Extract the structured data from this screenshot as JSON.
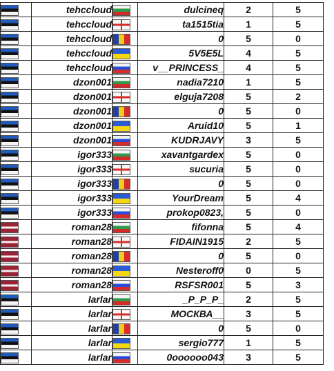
{
  "rows": [
    {
      "player1": "tehccloud",
      "flag1": "ee",
      "flag2": "bg",
      "player2": "dulcineq",
      "score1": "2",
      "score2": "5"
    },
    {
      "player1": "tehccloud",
      "flag1": "ee",
      "flag2": "ge",
      "player2": "ta1515tia",
      "score1": "1",
      "score2": "5"
    },
    {
      "player1": "tehccloud",
      "flag1": "ee",
      "flag2": "md",
      "player2": "0",
      "score1": "5",
      "score2": "0"
    },
    {
      "player1": "tehccloud",
      "flag1": "ee",
      "flag2": "ua",
      "player2": "5V5E5L",
      "score1": "4",
      "score2": "5"
    },
    {
      "player1": "tehccloud",
      "flag1": "ee",
      "flag2": "ru",
      "player2": "v__PRINCESS_",
      "score1": "4",
      "score2": "5"
    },
    {
      "player1": "dzon001",
      "flag1": "ee",
      "flag2": "bg",
      "player2": "nadia7210",
      "score1": "1",
      "score2": "5"
    },
    {
      "player1": "dzon001",
      "flag1": "ee",
      "flag2": "ge",
      "player2": "elguja7208",
      "score1": "5",
      "score2": "2"
    },
    {
      "player1": "dzon001",
      "flag1": "ee",
      "flag2": "md",
      "player2": "0",
      "score1": "5",
      "score2": "0"
    },
    {
      "player1": "dzon001",
      "flag1": "ee",
      "flag2": "ua",
      "player2": "Aruid10",
      "score1": "5",
      "score2": "1"
    },
    {
      "player1": "dzon001",
      "flag1": "ee",
      "flag2": "ru",
      "player2": "KUDRJAVY",
      "score1": "3",
      "score2": "5"
    },
    {
      "player1": "igor333",
      "flag1": "ee",
      "flag2": "bg",
      "player2": "xavantgardex",
      "score1": "5",
      "score2": "0"
    },
    {
      "player1": "igor333",
      "flag1": "ee",
      "flag2": "ge",
      "player2": "sucuria",
      "score1": "5",
      "score2": "0"
    },
    {
      "player1": "igor333",
      "flag1": "ee",
      "flag2": "md",
      "player2": "0",
      "score1": "5",
      "score2": "0"
    },
    {
      "player1": "igor333",
      "flag1": "ee",
      "flag2": "ua",
      "player2": "YourDream",
      "score1": "5",
      "score2": "4"
    },
    {
      "player1": "igor333",
      "flag1": "ee",
      "flag2": "ru",
      "player2": "prokop0823,",
      "score1": "5",
      "score2": "0"
    },
    {
      "player1": "roman28",
      "flag1": "lv",
      "flag2": "bg",
      "player2": "fifonna",
      "score1": "5",
      "score2": "4"
    },
    {
      "player1": "roman28",
      "flag1": "lv",
      "flag2": "ge",
      "player2": "FIDAIN1915",
      "score1": "2",
      "score2": "5"
    },
    {
      "player1": "roman28",
      "flag1": "lv",
      "flag2": "md",
      "player2": "0",
      "score1": "5",
      "score2": "0"
    },
    {
      "player1": "roman28",
      "flag1": "lv",
      "flag2": "ua",
      "player2": "Nesteroff0",
      "score1": "0",
      "score2": "5"
    },
    {
      "player1": "roman28",
      "flag1": "lv",
      "flag2": "ru",
      "player2": "RSFSR001",
      "score1": "5",
      "score2": "3"
    },
    {
      "player1": "larlar",
      "flag1": "ee",
      "flag2": "bg",
      "player2": "_P_P_P_",
      "score1": "2",
      "score2": "5"
    },
    {
      "player1": "larlar",
      "flag1": "ee",
      "flag2": "ge",
      "player2": "МОСКВА__",
      "score1": "3",
      "score2": "5"
    },
    {
      "player1": "larlar",
      "flag1": "ee",
      "flag2": "md",
      "player2": "0",
      "score1": "5",
      "score2": "0"
    },
    {
      "player1": "larlar",
      "flag1": "ee",
      "flag2": "ua",
      "player2": "sergio777",
      "score1": "1",
      "score2": "5"
    },
    {
      "player1": "larlar",
      "flag1": "ee",
      "flag2": "ru",
      "player2": "0oooooo043",
      "score1": "3",
      "score2": "5"
    }
  ]
}
